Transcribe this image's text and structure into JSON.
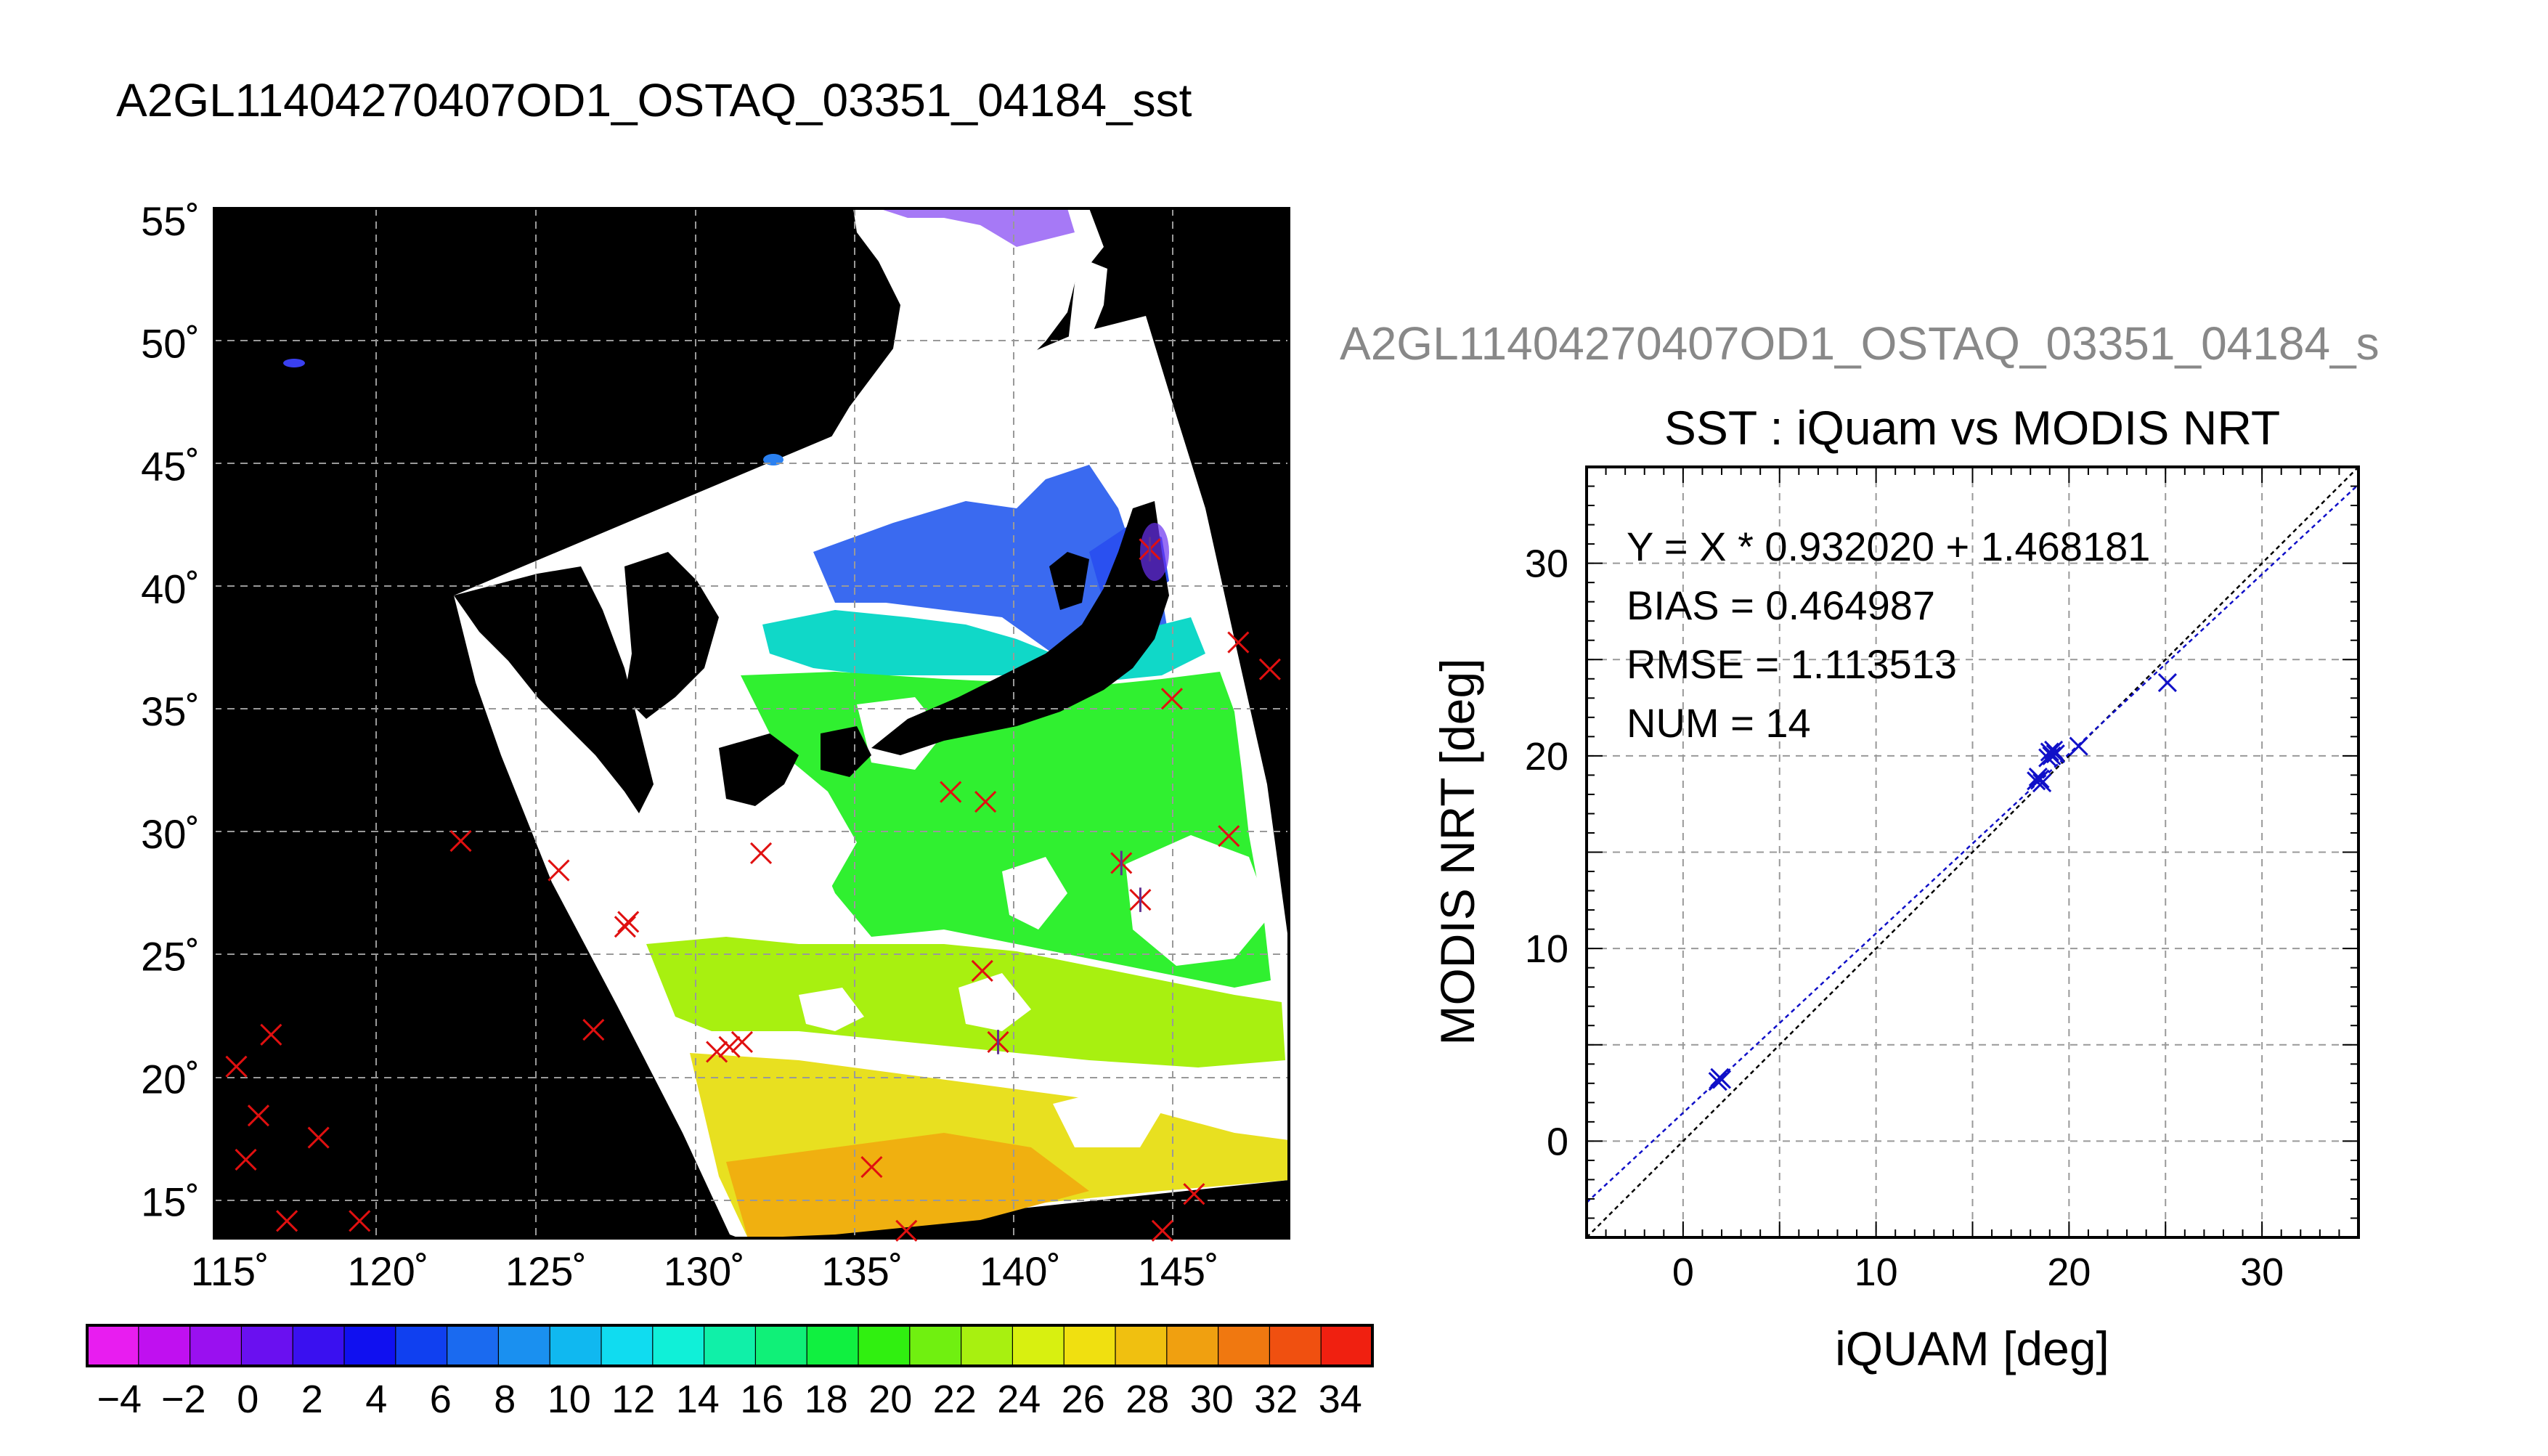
{
  "map_title": "A2GL11404270407OD1_OSTAQ_03351_04184_sst",
  "scatter_header": "A2GL11404270407OD1_OSTAQ_03351_04184_s",
  "chart_data": [
    {
      "type": "heatmap",
      "title": "A2GL11404270407OD1_OSTAQ_03351_04184_sst",
      "x_ticks": [
        "115˚",
        "120˚",
        "125˚",
        "130˚",
        "135˚",
        "140˚",
        "145˚"
      ],
      "y_ticks": [
        "55˚",
        "50˚",
        "45˚",
        "40˚",
        "35˚",
        "30˚",
        "25˚",
        "20˚",
        "15˚"
      ],
      "xlim": [
        114.5,
        148.5
      ],
      "ylim": [
        13.5,
        55.5
      ],
      "grid": true,
      "colorbar": {
        "ticks": [
          "−4",
          "−2",
          "0",
          "2",
          "4",
          "6",
          "8",
          "10",
          "12",
          "14",
          "16",
          "18",
          "20",
          "22",
          "24",
          "26",
          "28",
          "30",
          "32",
          "34"
        ],
        "range": [
          -5,
          35
        ],
        "colors": [
          "#e81df0",
          "#c010f0",
          "#9a10f0",
          "#6a10f0",
          "#3a10f0",
          "#1010f0",
          "#1040f0",
          "#1a6af0",
          "#1a90f0",
          "#10b8f0",
          "#10dcf0",
          "#10f0d8",
          "#10f0a8",
          "#10f078",
          "#10f040",
          "#30f010",
          "#70f010",
          "#a8f010",
          "#d8f010",
          "#f0e010",
          "#f0c010",
          "#f0a010",
          "#f07810",
          "#f05010",
          "#f02010"
        ]
      },
      "match_points_sea": [
        {
          "lon": 115.2,
          "lat": 20.5
        },
        {
          "lon": 116.3,
          "lat": 21.8
        },
        {
          "lon": 115.9,
          "lat": 18.5
        },
        {
          "lon": 115.5,
          "lat": 16.7
        },
        {
          "lon": 116.8,
          "lat": 14.2
        },
        {
          "lon": 117.8,
          "lat": 17.6
        },
        {
          "lon": 119.1,
          "lat": 14.2
        },
        {
          "lon": 122.3,
          "lat": 29.7
        },
        {
          "lon": 125.4,
          "lat": 28.5
        },
        {
          "lon": 127.6,
          "lat": 26.4
        },
        {
          "lon": 127.5,
          "lat": 26.2
        },
        {
          "lon": 126.5,
          "lat": 22.0
        },
        {
          "lon": 130.4,
          "lat": 21.1
        },
        {
          "lon": 130.8,
          "lat": 21.3
        },
        {
          "lon": 131.2,
          "lat": 21.5
        },
        {
          "lon": 131.8,
          "lat": 29.2
        },
        {
          "lon": 135.3,
          "lat": 16.4
        },
        {
          "lon": 137.8,
          "lat": 31.7
        },
        {
          "lon": 138.9,
          "lat": 31.3
        },
        {
          "lon": 138.8,
          "lat": 24.4
        },
        {
          "lon": 136.4,
          "lat": 13.8
        },
        {
          "lon": 144.5,
          "lat": 13.8
        },
        {
          "lon": 145.5,
          "lat": 15.3
        },
        {
          "lon": 146.6,
          "lat": 29.9
        },
        {
          "lon": 146.9,
          "lat": 37.8
        },
        {
          "lon": 147.9,
          "lat": 36.7
        },
        {
          "lon": 144.8,
          "lat": 35.5
        }
      ],
      "match_points_used": [
        {
          "lon": 139.3,
          "lat": 21.5
        },
        {
          "lon": 143.2,
          "lat": 28.8
        },
        {
          "lon": 143.8,
          "lat": 27.3
        },
        {
          "lon": 144.1,
          "lat": 41.6
        }
      ]
    },
    {
      "type": "scatter",
      "title": "SST : iQuam vs MODIS NRT",
      "xlabel": "iQUAM [deg]",
      "ylabel": "MODIS NRT [deg]",
      "xlim": [
        -5,
        35
      ],
      "ylim": [
        -5,
        35
      ],
      "x_ticks": [
        0,
        10,
        20,
        30
      ],
      "y_ticks": [
        0,
        10,
        20,
        30
      ],
      "grid": true,
      "annotations": [
        "Y = X * 0.932020 + 1.468181",
        "BIAS = 0.464987",
        "RMSE = 1.113513",
        "NUM = 14"
      ],
      "fit": {
        "slope": 0.93202,
        "intercept": 1.468181
      },
      "points": [
        {
          "x": 1.9,
          "y": 3.3
        },
        {
          "x": 2.0,
          "y": 3.2
        },
        {
          "x": 1.8,
          "y": 3.1
        },
        {
          "x": 18.3,
          "y": 18.7
        },
        {
          "x": 18.4,
          "y": 18.9
        },
        {
          "x": 18.6,
          "y": 18.6
        },
        {
          "x": 18.9,
          "y": 19.9
        },
        {
          "x": 19.0,
          "y": 20.2
        },
        {
          "x": 19.3,
          "y": 20.1
        },
        {
          "x": 19.2,
          "y": 20.3
        },
        {
          "x": 20.5,
          "y": 20.5
        },
        {
          "x": 25.1,
          "y": 23.8
        },
        {
          "x": 18.5,
          "y": 18.8
        },
        {
          "x": 19.1,
          "y": 20.0
        }
      ]
    }
  ]
}
